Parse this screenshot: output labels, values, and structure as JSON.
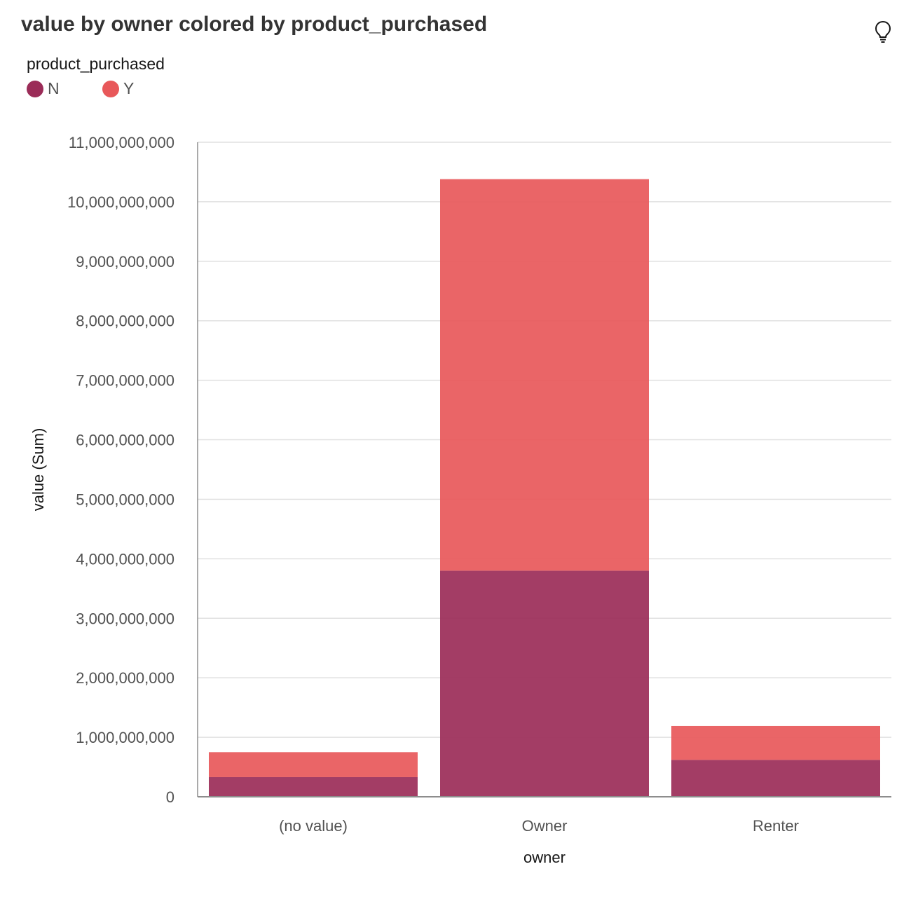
{
  "title": "value by owner colored by product_purchased",
  "icons": {
    "insight": "lightbulb-icon"
  },
  "legend": {
    "title": "product_purchased",
    "items": [
      {
        "label": "N",
        "color": "#9b2c58"
      },
      {
        "label": "Y",
        "color": "#e8585a"
      }
    ]
  },
  "chart_data": {
    "type": "bar",
    "stacked": true,
    "categories": [
      "(no value)",
      "Owner",
      "Renter"
    ],
    "series": [
      {
        "name": "N",
        "color": "#9b2c58",
        "values": [
          330000000,
          3800000000,
          620000000
        ]
      },
      {
        "name": "Y",
        "color": "#e8585a",
        "values": [
          420000000,
          6580000000,
          570000000
        ]
      }
    ],
    "xlabel": "owner",
    "ylabel": "value (Sum)",
    "ylim": [
      0,
      11000000000
    ],
    "yticks": [
      0,
      1000000000,
      2000000000,
      3000000000,
      4000000000,
      5000000000,
      6000000000,
      7000000000,
      8000000000,
      9000000000,
      10000000000,
      11000000000
    ],
    "ytick_labels": [
      "0",
      "1,000,000,000",
      "2,000,000,000",
      "3,000,000,000",
      "4,000,000,000",
      "5,000,000,000",
      "6,000,000,000",
      "7,000,000,000",
      "8,000,000,000",
      "9,000,000,000",
      "10,000,000,000",
      "11,000,000,000"
    ],
    "grid": true,
    "legend_position": "top-left"
  }
}
